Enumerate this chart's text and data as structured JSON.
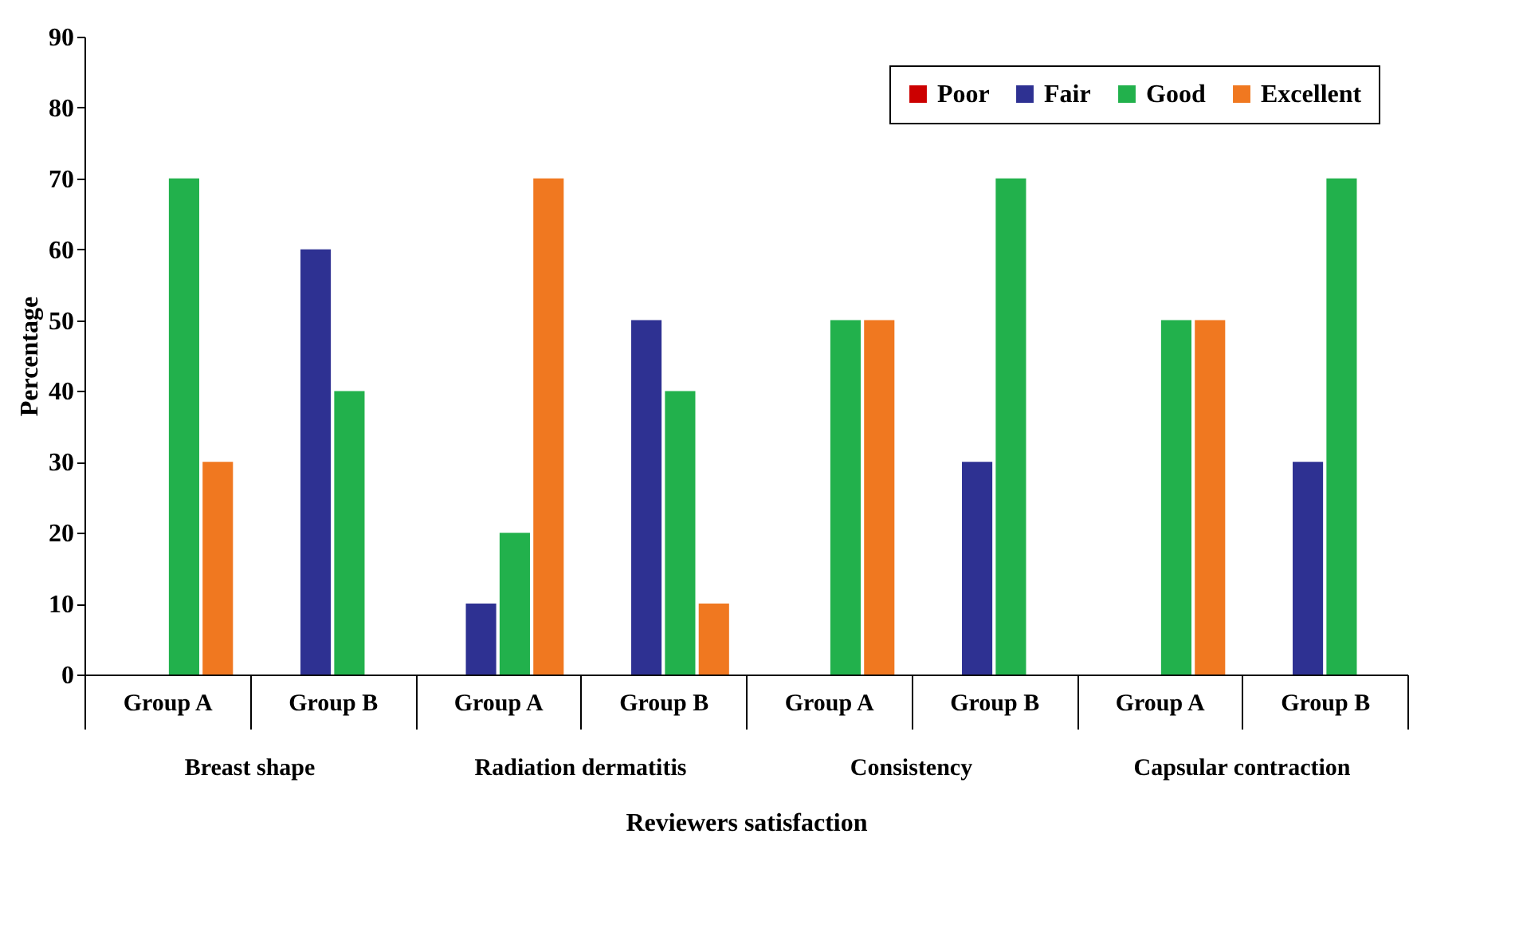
{
  "chart_data": {
    "type": "bar",
    "xlabel": "Reviewers satisfaction",
    "ylabel": "Percentage",
    "categories": [
      "Group A",
      "Group B",
      "Group A",
      "Group B",
      "Group A",
      "Group B",
      "Group A",
      "Group B"
    ],
    "series": [
      {
        "name": "Poor",
        "color": "#cc0000",
        "values": [
          0,
          0,
          0,
          0,
          0,
          0,
          0,
          0
        ]
      },
      {
        "name": "Fair",
        "color": "#2e3192",
        "values": [
          0,
          60,
          10,
          50,
          0,
          30,
          0,
          30
        ]
      },
      {
        "name": "Good",
        "color": "#22b14c",
        "values": [
          70,
          40,
          20,
          40,
          50,
          70,
          50,
          70
        ]
      },
      {
        "name": "Excellent",
        "color": "#f07820",
        "values": [
          30,
          0,
          70,
          10,
          50,
          0,
          50,
          0
        ]
      }
    ],
    "annotations": [
      "Breast shape",
      "Radiation dermatitis",
      "Consistency",
      "Capsular contraction"
    ],
    "ylim": [
      0,
      90
    ],
    "yticks": [
      0,
      10,
      20,
      30,
      40,
      50,
      60,
      70,
      80,
      90
    ],
    "grid": false,
    "legend": "top right"
  }
}
